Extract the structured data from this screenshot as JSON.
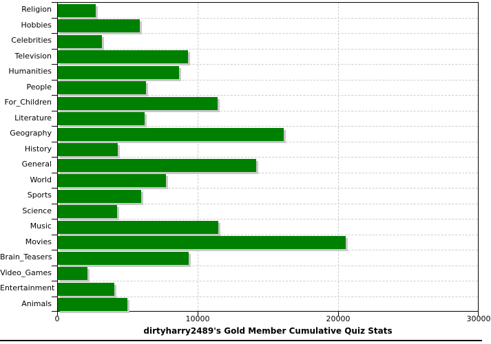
{
  "chart_data": {
    "type": "bar",
    "orientation": "horizontal",
    "title": "dirtyharry2489's Gold Member Cumulative Quiz Stats",
    "categories": [
      "Religion",
      "Hobbies",
      "Celebrities",
      "Television",
      "Humanities",
      "People",
      "For_Children",
      "Literature",
      "Geography",
      "History",
      "General",
      "World",
      "Sports",
      "Science",
      "Music",
      "Movies",
      "Brain_Teasers",
      "Video_Games",
      "Entertainment",
      "Animals"
    ],
    "values": [
      2700,
      5850,
      3150,
      9300,
      8650,
      6300,
      11400,
      6200,
      16150,
      4300,
      14150,
      7700,
      5950,
      4250,
      11450,
      20550,
      9350,
      2100,
      4050,
      4950
    ],
    "xlabel": "",
    "ylabel": "",
    "xlim": [
      0,
      30000
    ],
    "x_ticks": [
      0,
      10000,
      20000,
      30000
    ],
    "x_tick_labels": [
      "0",
      "10000",
      "20000",
      "30000"
    ],
    "grid": "dashed",
    "legend": "none",
    "colors": {
      "bar": "#008000",
      "bar_shadow": "#c8c8c8",
      "grid": "#cccccc",
      "axis": "#000000",
      "text": "#000000",
      "background": "#ffffff"
    }
  }
}
